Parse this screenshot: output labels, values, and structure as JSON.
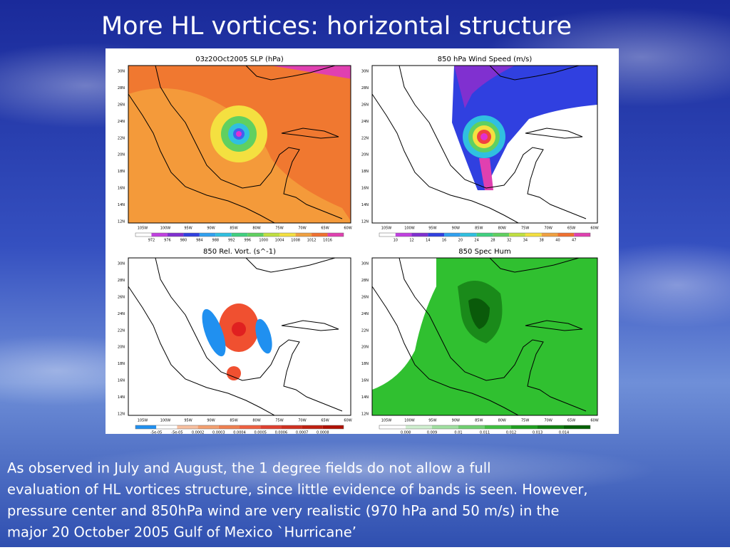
{
  "title": "More HL vortices: horizontal structure",
  "figure": {
    "lat_labels": [
      "30N",
      "28N",
      "26N",
      "24N",
      "22N",
      "20N",
      "18N",
      "16N",
      "14N",
      "12N"
    ],
    "lon_labels": [
      "105W",
      "100W",
      "95W",
      "90W",
      "85W",
      "80W",
      "75W",
      "70W",
      "65W",
      "60W"
    ],
    "panels": [
      {
        "title": "03z20Oct2005 SLP (hPa)",
        "colorbar_labels": [
          "972",
          "976",
          "980",
          "984",
          "988",
          "992",
          "996",
          "1000",
          "1004",
          "1008",
          "1012",
          "1016"
        ]
      },
      {
        "title": "850 hPa Wind Speed (m/s)",
        "colorbar_labels": [
          "10",
          "12",
          "14",
          "16",
          "20",
          "24",
          "28",
          "32",
          "34",
          "38",
          "40",
          "47"
        ]
      },
      {
        "title": "850 Rel. Vort. (s^-1)",
        "colorbar_labels": [
          "-5e-05",
          "-5e-05",
          "0.0002",
          "0.0003",
          "0.0004",
          "0.0005",
          "0.0006",
          "0.0007",
          "0.0008"
        ]
      },
      {
        "title": "850 Spec Hum",
        "colorbar_labels": [
          "0.008",
          "0.009",
          "0.01",
          "0.011",
          "0.012",
          "0.013",
          "0.014"
        ]
      }
    ]
  },
  "body": {
    "lines": [
      "As observed  in July and August, the 1 degree fields do not allow a full",
      "evaluation of HL vortices structure, since little evidence of bands is seen. However,",
      "pressure center and 850hPa wind are very realistic (970 hPa and 50 m/s) in the",
      "major 20 October 2005  Gulf of Mexico `Hurricane’"
    ]
  }
}
